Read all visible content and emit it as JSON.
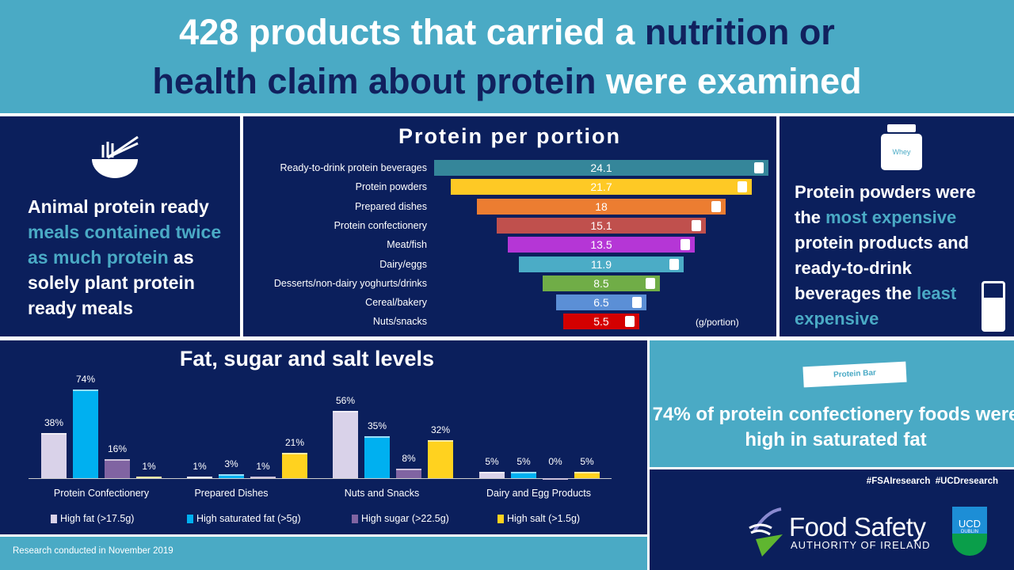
{
  "header": {
    "title_part1": "428 products that carried a ",
    "title_part2": "nutrition or",
    "title_part3": "health claim about protein",
    "title_part4": " were examined"
  },
  "left_panel": {
    "icon": "noodle-bowl-icon",
    "text_part1": "Animal protein ready ",
    "text_part2": "meals contained twice as much protein",
    "text_part3": " as solely plant protein ready meals"
  },
  "right_panel": {
    "icon_top": "whey-tub-icon",
    "whey_label": "Whey",
    "icon_bottom": "glass-of-milk-icon",
    "text_part1": "Protein powders were the ",
    "text_part2": "most expensive",
    "text_part3": " protein products and ready-to-drink beverages the ",
    "text_part4": "least expensive"
  },
  "stat_panel": {
    "icon": "protein-bar-icon",
    "bar_label": "Protein Bar",
    "text": "74% of protein confectionery foods were high in saturated fat"
  },
  "footer": {
    "note": "Research conducted in November 2019"
  },
  "logos": {
    "hashtags": "#FSAIresearch  #UCDresearch",
    "fsai_line1": "Food Safety",
    "fsai_line2": "AUTHORITY OF IRELAND",
    "ucd_line1": "UCD",
    "ucd_line2": "DUBLIN"
  },
  "chart_data": [
    {
      "type": "bar",
      "orientation": "horizontal",
      "title": "Protein per portion",
      "unit_label": "(g/portion)",
      "categories": [
        "Ready-to-drink protein beverages",
        "Protein powders",
        "Prepared dishes",
        "Protein confectionery",
        "Meat/fish",
        "Dairy/eggs",
        "Desserts/non-dairy yoghurts/drinks",
        "Cereal/bakery",
        "Nuts/snacks"
      ],
      "values": [
        24.1,
        21.7,
        18,
        15.1,
        13.5,
        11.9,
        8.5,
        6.5,
        5.5
      ],
      "value_labels": [
        "24.1",
        "21.7",
        "18",
        "15.1",
        "13.5",
        "11.9",
        "8.5",
        "6.5",
        "5.5"
      ],
      "colors": [
        "#35869a",
        "#fec925",
        "#ec7d31",
        "#c0504d",
        "#b536d6",
        "#4bacc6",
        "#70ad47",
        "#5b8fd6",
        "#d40000"
      ],
      "icons": [
        "bottle-icon",
        "whey-tub-icon",
        "pasta-dish-icon",
        "protein-bar-icon",
        "drumstick-icon",
        "eggs-icon",
        "yoghurt-icon",
        "cereal-bowl-icon",
        "snack-pack-icon"
      ]
    },
    {
      "type": "bar",
      "title": "Fat, sugar and salt levels",
      "categories": [
        "Protein Confectionery",
        "Prepared Dishes",
        "Nuts and Snacks",
        "Dairy and Egg Products"
      ],
      "series": [
        {
          "name": "High fat (>17.5g)",
          "color": "#d9d2e9",
          "values": [
            38,
            1,
            56,
            5
          ]
        },
        {
          "name": "High saturated fat (>5g)",
          "color": "#00b0f0",
          "values": [
            74,
            3,
            35,
            5
          ]
        },
        {
          "name": "High sugar (>22.5g)",
          "color": "#8064a2",
          "values": [
            16,
            1,
            8,
            0
          ]
        },
        {
          "name": "High salt (>1.5g)",
          "color": "#ffd21f",
          "values": [
            1,
            21,
            32,
            5
          ]
        }
      ],
      "legend": "bottom",
      "ylim": [
        0,
        80
      ]
    }
  ]
}
